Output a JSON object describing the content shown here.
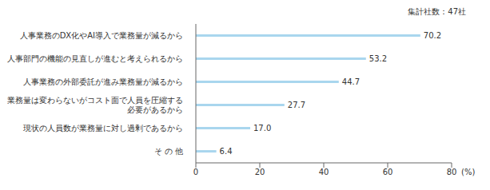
{
  "chart_data": {
    "type": "bar",
    "orientation": "horizontal",
    "annotation": "集計社数：47社",
    "categories": [
      "人事業務のDX化やAI導入で業務量が減るから",
      "人事部門の機能の見直しが進むと考えられるから",
      "人事業務の外部委託が進み業務量が減るから",
      "業務量は変わらないがコスト面で人員を圧縮する必要があるから",
      "現状の人員数が業務量に対し過剰であるから",
      "そ の 他"
    ],
    "values": [
      70.2,
      53.2,
      44.7,
      27.7,
      17.0,
      6.4
    ],
    "value_labels": [
      "70.2",
      "53.2",
      "44.7",
      "27.7",
      "17.0",
      "6.4"
    ],
    "data_labels": true,
    "color": "#a9d6ee",
    "xlim": [
      0,
      80
    ],
    "xticks": [
      0,
      20,
      40,
      60,
      80
    ],
    "x_label": "(%)",
    "grid": false
  }
}
